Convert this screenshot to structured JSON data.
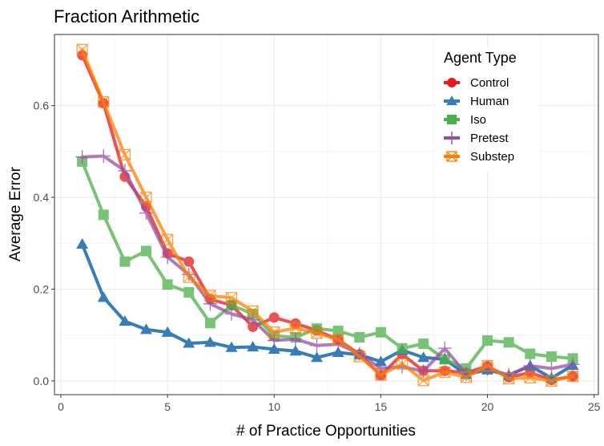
{
  "chart_data": {
    "type": "line",
    "title": "Fraction Arithmetic",
    "xlabel": "# of Practice Opportunities",
    "ylabel": "Average Error",
    "xlim": [
      -0.3,
      25.2
    ],
    "ylim": [
      -0.03,
      0.755
    ],
    "xticks": [
      0,
      5,
      10,
      15,
      20,
      25
    ],
    "xtick_labels": [
      "0",
      "5",
      "10",
      "15",
      "20",
      "25"
    ],
    "yticks": [
      0.0,
      0.2,
      0.4,
      0.6
    ],
    "ytick_labels": [
      "0.0",
      "0.2",
      "0.4",
      "0.6"
    ],
    "grid": true,
    "legend": {
      "title": "Agent Type",
      "placement": "top-right"
    },
    "x": [
      1,
      2,
      3,
      4,
      5,
      6,
      7,
      8,
      9,
      10,
      11,
      12,
      13,
      14,
      15,
      16,
      17,
      18,
      19,
      20,
      21,
      22,
      23,
      24
    ],
    "series": [
      {
        "name": "Control",
        "color": "#E41A1C",
        "marker": "circle",
        "values": [
          0.71,
          0.605,
          0.445,
          0.38,
          0.278,
          0.26,
          0.178,
          0.165,
          0.118,
          0.138,
          0.125,
          0.11,
          0.09,
          0.058,
          0.012,
          0.058,
          0.022,
          0.022,
          0.018,
          0.032,
          0.008,
          0.018,
          0.002,
          0.01
        ]
      },
      {
        "name": "Human",
        "color": "#377EB8",
        "marker": "triangle",
        "values": [
          0.298,
          0.182,
          0.13,
          0.112,
          0.106,
          0.082,
          0.084,
          0.073,
          0.074,
          0.069,
          0.065,
          0.051,
          0.062,
          0.057,
          0.042,
          0.067,
          0.051,
          0.047,
          0.014,
          0.024,
          0.012,
          0.033,
          0.006,
          0.034
        ]
      },
      {
        "name": "Iso",
        "color": "#4DAF4A",
        "marker": "square",
        "values": [
          0.478,
          0.362,
          0.26,
          0.283,
          0.21,
          0.193,
          0.126,
          0.165,
          0.146,
          0.098,
          0.095,
          0.114,
          0.109,
          0.095,
          0.106,
          0.071,
          0.081,
          0.047,
          0.027,
          0.088,
          0.084,
          0.059,
          0.053,
          0.049
        ]
      },
      {
        "name": "Pretest",
        "color": "#984EA3",
        "marker": "plus",
        "values": [
          0.488,
          0.49,
          0.458,
          0.366,
          0.27,
          0.232,
          0.168,
          0.146,
          0.133,
          0.088,
          0.091,
          0.077,
          0.08,
          0.059,
          0.027,
          0.031,
          0.021,
          0.071,
          0.015,
          0.026,
          0.013,
          0.033,
          0.027,
          0.036
        ]
      },
      {
        "name": "Substep",
        "color": "#FF7F00",
        "marker": "square-x",
        "values": [
          0.722,
          0.608,
          0.493,
          0.4,
          0.308,
          0.226,
          0.186,
          0.181,
          0.152,
          0.106,
          0.115,
          0.104,
          0.09,
          0.053,
          0.013,
          0.037,
          0.001,
          0.019,
          0.008,
          0.033,
          0.005,
          0.007,
          0.0,
          0.01
        ]
      }
    ]
  }
}
